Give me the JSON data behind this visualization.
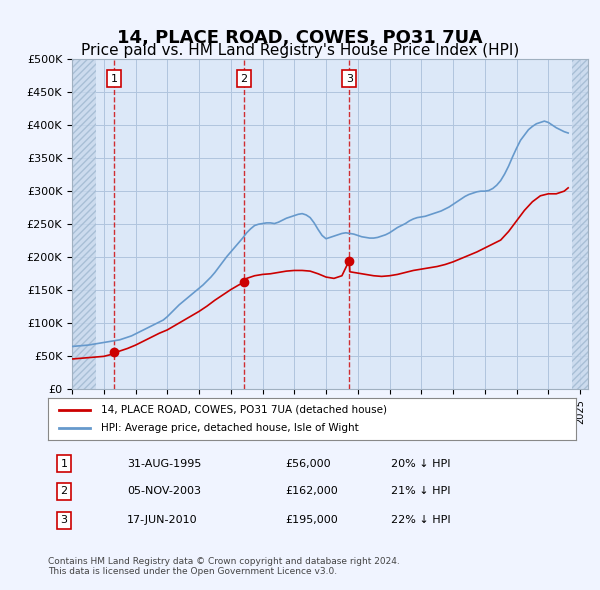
{
  "title": "14, PLACE ROAD, COWES, PO31 7UA",
  "subtitle": "Price paid vs. HM Land Registry's House Price Index (HPI)",
  "title_fontsize": 13,
  "subtitle_fontsize": 11,
  "ylabel_ticks": [
    "£0",
    "£50K",
    "£100K",
    "£150K",
    "£200K",
    "£250K",
    "£300K",
    "£350K",
    "£400K",
    "£450K",
    "£500K"
  ],
  "ytick_vals": [
    0,
    50000,
    100000,
    150000,
    200000,
    250000,
    300000,
    350000,
    400000,
    450000,
    500000
  ],
  "xlim_start": 1993.0,
  "xlim_end": 2025.5,
  "ylim_min": 0,
  "ylim_max": 500000,
  "sale_dates": [
    1995.664,
    2003.843,
    2010.461
  ],
  "sale_prices": [
    56000,
    162000,
    195000
  ],
  "sale_labels": [
    "1",
    "2",
    "3"
  ],
  "legend_red_label": "14, PLACE ROAD, COWES, PO31 7UA (detached house)",
  "legend_blue_label": "HPI: Average price, detached house, Isle of Wight",
  "table_rows": [
    [
      "1",
      "31-AUG-1995",
      "£56,000",
      "20% ↓ HPI"
    ],
    [
      "2",
      "05-NOV-2003",
      "£162,000",
      "21% ↓ HPI"
    ],
    [
      "3",
      "17-JUN-2010",
      "£195,000",
      "22% ↓ HPI"
    ]
  ],
  "footer_text": "Contains HM Land Registry data © Crown copyright and database right 2024.\nThis data is licensed under the Open Government Licence v3.0.",
  "bg_color": "#f0f4ff",
  "plot_bg_color": "#dce8f8",
  "hatch_color": "#c8d8ec",
  "grid_color": "#b0c4de",
  "red_color": "#cc0000",
  "blue_color": "#6699cc",
  "hpi_years": [
    1993,
    1993.25,
    1993.5,
    1993.75,
    1994,
    1994.25,
    1994.5,
    1994.75,
    1995,
    1995.25,
    1995.5,
    1995.75,
    1996,
    1996.25,
    1996.5,
    1996.75,
    1997,
    1997.25,
    1997.5,
    1997.75,
    1998,
    1998.25,
    1998.5,
    1998.75,
    1999,
    1999.25,
    1999.5,
    1999.75,
    2000,
    2000.25,
    2000.5,
    2000.75,
    2001,
    2001.25,
    2001.5,
    2001.75,
    2002,
    2002.25,
    2002.5,
    2002.75,
    2003,
    2003.25,
    2003.5,
    2003.75,
    2004,
    2004.25,
    2004.5,
    2004.75,
    2005,
    2005.25,
    2005.5,
    2005.75,
    2006,
    2006.25,
    2006.5,
    2006.75,
    2007,
    2007.25,
    2007.5,
    2007.75,
    2008,
    2008.25,
    2008.5,
    2008.75,
    2009,
    2009.25,
    2009.5,
    2009.75,
    2010,
    2010.25,
    2010.5,
    2010.75,
    2011,
    2011.25,
    2011.5,
    2011.75,
    2012,
    2012.25,
    2012.5,
    2012.75,
    2013,
    2013.25,
    2013.5,
    2013.75,
    2014,
    2014.25,
    2014.5,
    2014.75,
    2015,
    2015.25,
    2015.5,
    2015.75,
    2016,
    2016.25,
    2016.5,
    2016.75,
    2017,
    2017.25,
    2017.5,
    2017.75,
    2018,
    2018.25,
    2018.5,
    2018.75,
    2019,
    2019.25,
    2019.5,
    2019.75,
    2020,
    2020.25,
    2020.5,
    2020.75,
    2021,
    2021.25,
    2021.5,
    2021.75,
    2022,
    2022.25,
    2022.5,
    2022.75,
    2023,
    2023.25,
    2023.5,
    2023.75,
    2024,
    2024.25
  ],
  "hpi_values": [
    65000,
    65500,
    66000,
    66500,
    67000,
    68000,
    69000,
    70000,
    71000,
    72000,
    73000,
    74000,
    75000,
    77000,
    79000,
    81000,
    84000,
    87000,
    90000,
    93000,
    96000,
    99000,
    102000,
    105000,
    110000,
    116000,
    122000,
    128000,
    133000,
    138000,
    143000,
    148000,
    153000,
    158000,
    164000,
    170000,
    177000,
    185000,
    193000,
    201000,
    208000,
    215000,
    222000,
    229000,
    237000,
    243000,
    248000,
    250000,
    251000,
    252000,
    252000,
    251000,
    253000,
    256000,
    259000,
    261000,
    263000,
    265000,
    266000,
    264000,
    260000,
    252000,
    242000,
    233000,
    228000,
    230000,
    232000,
    234000,
    236000,
    237000,
    236000,
    235000,
    233000,
    231000,
    230000,
    229000,
    229000,
    230000,
    232000,
    234000,
    237000,
    241000,
    245000,
    248000,
    251000,
    255000,
    258000,
    260000,
    261000,
    262000,
    264000,
    266000,
    268000,
    270000,
    273000,
    276000,
    280000,
    284000,
    288000,
    292000,
    295000,
    297000,
    299000,
    300000,
    300000,
    301000,
    304000,
    309000,
    316000,
    326000,
    338000,
    352000,
    365000,
    377000,
    385000,
    393000,
    398000,
    402000,
    404000,
    406000,
    404000,
    400000,
    396000,
    393000,
    390000,
    388000
  ],
  "red_years": [
    1993,
    1993.5,
    1994,
    1994.5,
    1995,
    1995.5,
    1995.664,
    1996,
    1996.5,
    1997,
    1997.5,
    1998,
    1998.5,
    1999,
    1999.5,
    2000,
    2000.5,
    2001,
    2001.5,
    2002,
    2002.5,
    2003,
    2003.5,
    2003.843,
    2004,
    2004.5,
    2005,
    2005.5,
    2006,
    2006.5,
    2007,
    2007.5,
    2008,
    2008.5,
    2009,
    2009.5,
    2010,
    2010.461,
    2010.5,
    2011,
    2011.5,
    2012,
    2012.5,
    2013,
    2013.5,
    2014,
    2014.5,
    2015,
    2015.5,
    2016,
    2016.5,
    2017,
    2017.5,
    2018,
    2018.5,
    2019,
    2019.5,
    2020,
    2020.5,
    2021,
    2021.5,
    2022,
    2022.5,
    2023,
    2023.5,
    2024,
    2024.25
  ],
  "red_values": [
    46000,
    47000,
    48000,
    49000,
    50000,
    53000,
    56000,
    58000,
    62000,
    67000,
    73000,
    79000,
    85000,
    90000,
    97000,
    104000,
    111000,
    118000,
    126000,
    135000,
    143000,
    151000,
    158000,
    162000,
    168000,
    172000,
    174000,
    175000,
    177000,
    179000,
    180000,
    180000,
    179000,
    175000,
    170000,
    168000,
    172000,
    195000,
    178000,
    176000,
    174000,
    172000,
    171000,
    172000,
    174000,
    177000,
    180000,
    182000,
    184000,
    186000,
    189000,
    193000,
    198000,
    203000,
    208000,
    214000,
    220000,
    226000,
    239000,
    255000,
    271000,
    284000,
    293000,
    296000,
    296000,
    300000,
    305000
  ]
}
